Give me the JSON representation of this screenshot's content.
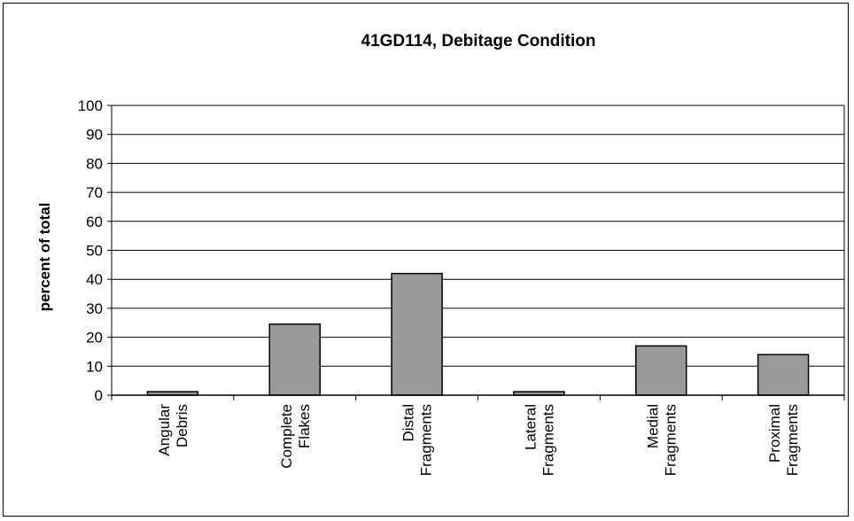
{
  "chart_data": {
    "type": "bar",
    "title": "41GD114, Debitage Condition",
    "xlabel": "",
    "ylabel": "percent of total",
    "ylim": [
      0,
      100
    ],
    "ytick_step": 10,
    "yticks": [
      "0",
      "10",
      "20",
      "30",
      "40",
      "50",
      "60",
      "70",
      "80",
      "90",
      "100"
    ],
    "grid": true,
    "categories": [
      [
        "Angular",
        "Debris"
      ],
      [
        "Complete",
        "Flakes"
      ],
      [
        "Distal",
        "Fragments"
      ],
      [
        "Lateral",
        "Fragments"
      ],
      [
        "Medial",
        "Fragments"
      ],
      [
        "Proximal",
        "Fragments"
      ]
    ],
    "values": [
      1.2,
      24.5,
      42,
      1.2,
      17,
      14
    ],
    "bar_color": "#999999",
    "bar_edge_color": "#000000",
    "grid_color": "#000000"
  }
}
